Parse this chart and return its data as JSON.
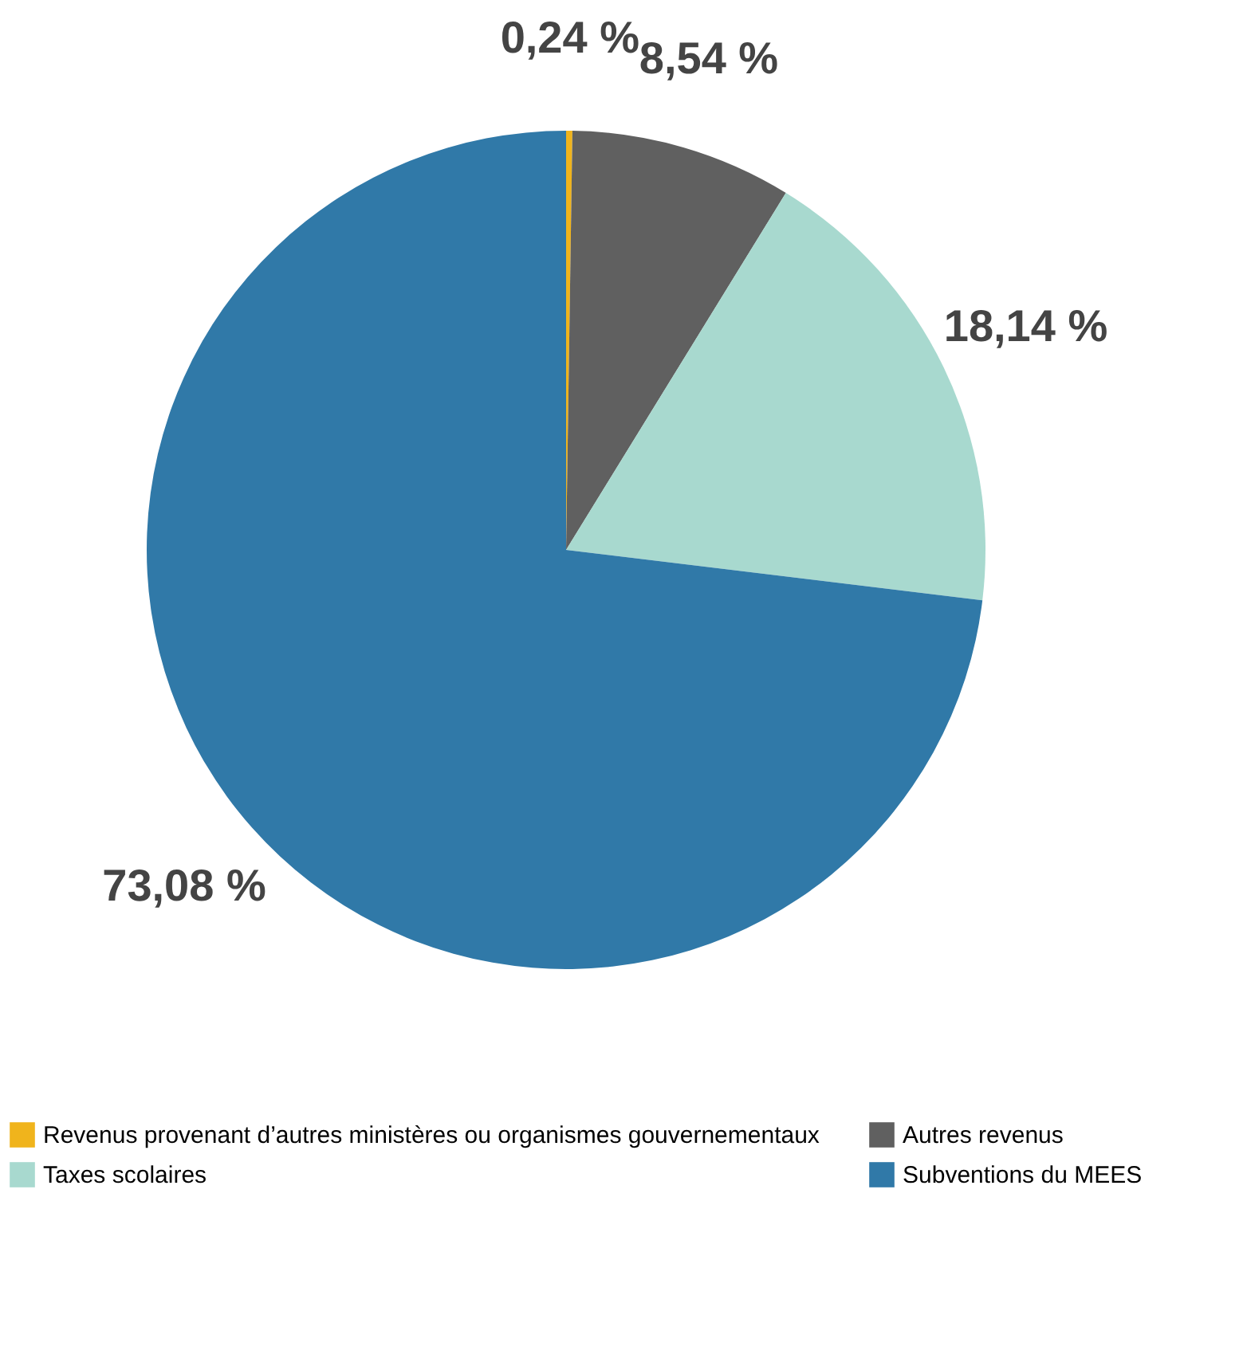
{
  "chart_data": {
    "type": "pie",
    "categories": [
      "Revenus provenant d’autres ministères ou organismes gouvernementaux",
      "Autres revenus",
      "Taxes scolaires",
      "Subventions du MEES"
    ],
    "values": [
      0.24,
      8.54,
      18.14,
      73.08
    ],
    "value_labels": [
      "0,24 %",
      "8,54 %",
      "18,14 %",
      "73,08 %"
    ],
    "colors": [
      "#f0b41c",
      "#606060",
      "#a8d9cf",
      "#3079a8"
    ],
    "legend": "bottom"
  }
}
